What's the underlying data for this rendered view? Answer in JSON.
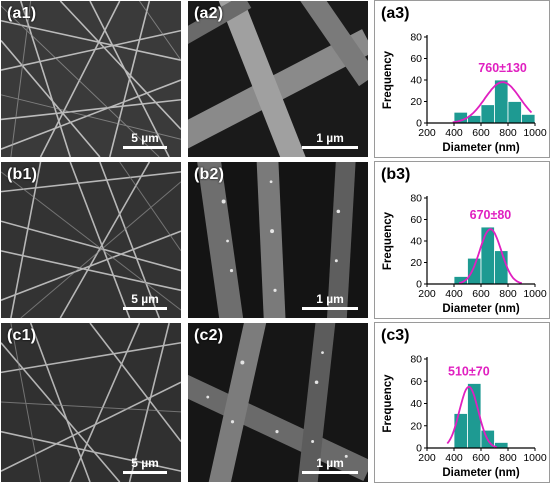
{
  "panels": [
    {
      "label": "(a1)",
      "scale": "5 µm"
    },
    {
      "label": "(a2)",
      "scale": "1 µm"
    },
    {
      "label": "(b1)",
      "scale": "5 µm"
    },
    {
      "label": "(b2)",
      "scale": "1 µm"
    },
    {
      "label": "(c1)",
      "scale": "5 µm"
    },
    {
      "label": "(c2)",
      "scale": "1 µm"
    }
  ],
  "colors": {
    "bar": "#1e9a92",
    "curve": "#e020c0",
    "annotation": "#e020c0"
  },
  "chart_data": [
    {
      "type": "bar",
      "panel_label": "(a3)",
      "annotation": "760±130",
      "xlabel": "Diameter (nm)",
      "ylabel": "Frequency",
      "xlim": [
        200,
        1000
      ],
      "ylim": [
        0,
        80
      ],
      "xticks": [
        "200",
        "400",
        "600",
        "800",
        "1000"
      ],
      "yticks": [
        "0",
        "20",
        "40",
        "60",
        "80"
      ],
      "bin_width": 100,
      "bins": [
        450,
        550,
        650,
        750,
        850,
        950
      ],
      "values": [
        10,
        7,
        17,
        40,
        20,
        8
      ],
      "fit": {
        "mean": 760,
        "sd": 130,
        "peak": 38
      }
    },
    {
      "type": "bar",
      "panel_label": "(b3)",
      "annotation": "670±80",
      "xlabel": "Diameter (nm)",
      "ylabel": "Frequency",
      "xlim": [
        200,
        1000
      ],
      "ylim": [
        0,
        80
      ],
      "xticks": [
        "200",
        "400",
        "600",
        "800",
        "1000"
      ],
      "yticks": [
        "0",
        "20",
        "40",
        "60",
        "80"
      ],
      "bin_width": 100,
      "bins": [
        450,
        550,
        650,
        750
      ],
      "values": [
        7,
        24,
        53,
        31
      ],
      "fit": {
        "mean": 670,
        "sd": 80,
        "peak": 51
      }
    },
    {
      "type": "bar",
      "panel_label": "(c3)",
      "annotation": "510±70",
      "xlabel": "Diameter (nm)",
      "ylabel": "Frequency",
      "xlim": [
        200,
        1000
      ],
      "ylim": [
        0,
        80
      ],
      "xticks": [
        "200",
        "400",
        "600",
        "800",
        "1000"
      ],
      "yticks": [
        "0",
        "20",
        "40",
        "60",
        "80"
      ],
      "bin_width": 100,
      "bins": [
        450,
        550,
        650,
        750
      ],
      "values": [
        31,
        58,
        16,
        5
      ],
      "fit": {
        "mean": 510,
        "sd": 70,
        "peak": 55
      }
    }
  ]
}
